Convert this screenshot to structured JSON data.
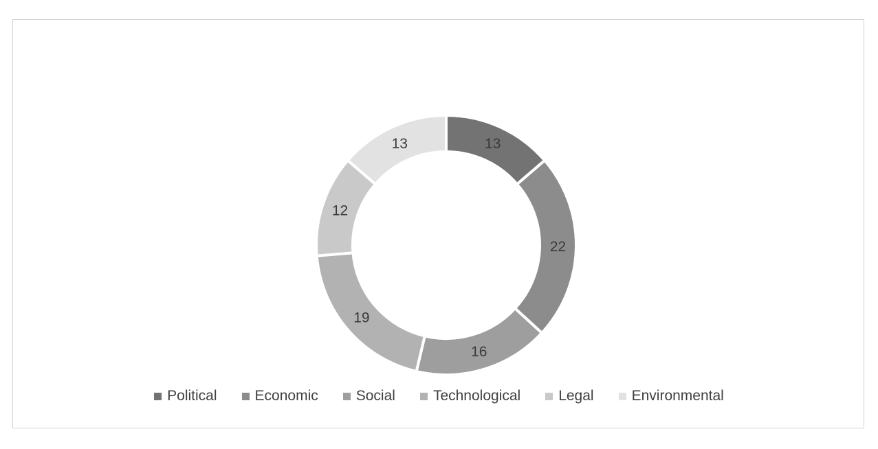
{
  "chart_data": {
    "type": "pie",
    "subtype": "donut",
    "categories": [
      "Political",
      "Economic",
      "Social",
      "Technological",
      "Legal",
      "Environmental"
    ],
    "values": [
      13,
      22,
      16,
      19,
      12,
      13
    ],
    "colors": [
      "#737373",
      "#8c8c8c",
      "#9e9e9e",
      "#b2b2b2",
      "#c9c9c9",
      "#e2e2e2"
    ],
    "show_data_labels": true,
    "data_label_color": "#3a3a3a",
    "start_angle_deg": 0,
    "direction": "clockwise",
    "hole_ratio": 0.72,
    "segment_gap_color": "#ffffff",
    "legend_position": "bottom",
    "legend_text_color": "#404040",
    "title": ""
  },
  "frame": {
    "border_color": "#d2d2d2",
    "background": "#ffffff"
  }
}
